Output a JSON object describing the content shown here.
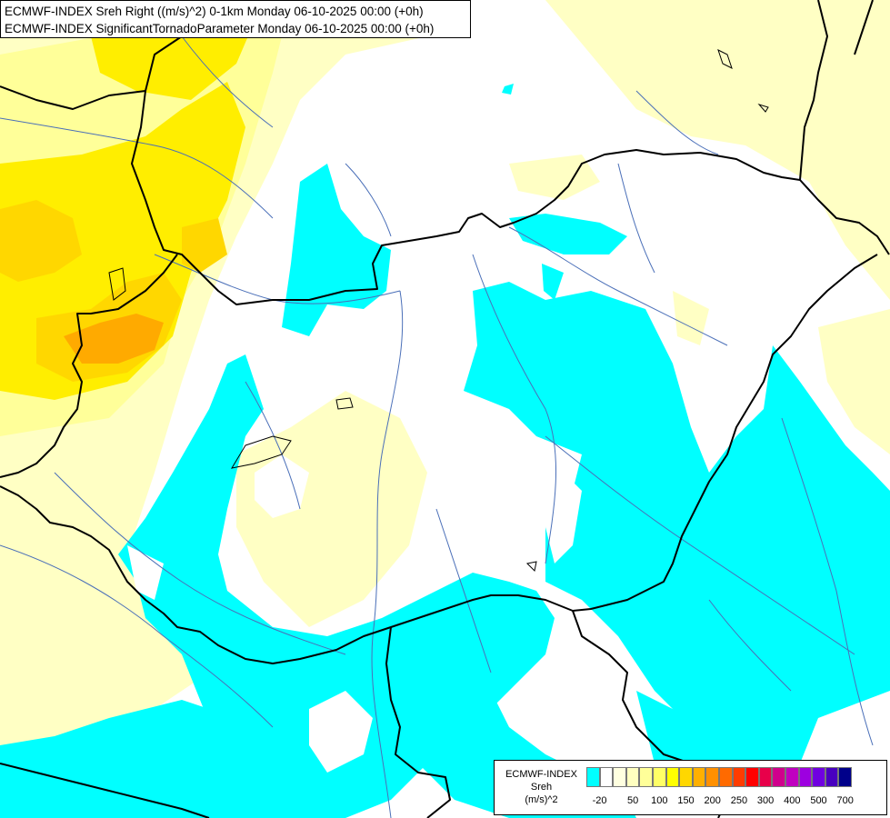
{
  "header": {
    "line1": "ECMWF-INDEX Sreh Right ((m/s)^2) 0-1km Monday 06-10-2025 00:00 (+0h)",
    "line2": "ECMWF-INDEX SignificantTornadoParameter Monday 06-10-2025 00:00 (+0h)"
  },
  "legend": {
    "title1": "ECMWF-INDEX",
    "title2": "Sreh",
    "title3": "(m/s)^2",
    "colors": [
      "#00ffff",
      "#ffffff",
      "#ffffe0",
      "#ffffc0",
      "#ffff99",
      "#ffff66",
      "#ffff00",
      "#ffd700",
      "#ffb000",
      "#ff9000",
      "#ff6a00",
      "#ff3c00",
      "#ff0000",
      "#e8004a",
      "#d0008c",
      "#c000c0",
      "#9d00e0",
      "#7000e0",
      "#4800c0",
      "#00008a"
    ],
    "labels": [
      "-20",
      "50",
      "100",
      "150",
      "200",
      "250",
      "300",
      "400",
      "500",
      "700"
    ]
  },
  "map": {
    "colors": {
      "cyan": "#00ffff",
      "pale_yellow": "#ffffc4",
      "light_yellow": "#ffff99",
      "yellow": "#ffee00",
      "gold": "#ffd700",
      "orange": "#ffaa00",
      "border": "#000000",
      "river": "#4a6fb8"
    }
  }
}
